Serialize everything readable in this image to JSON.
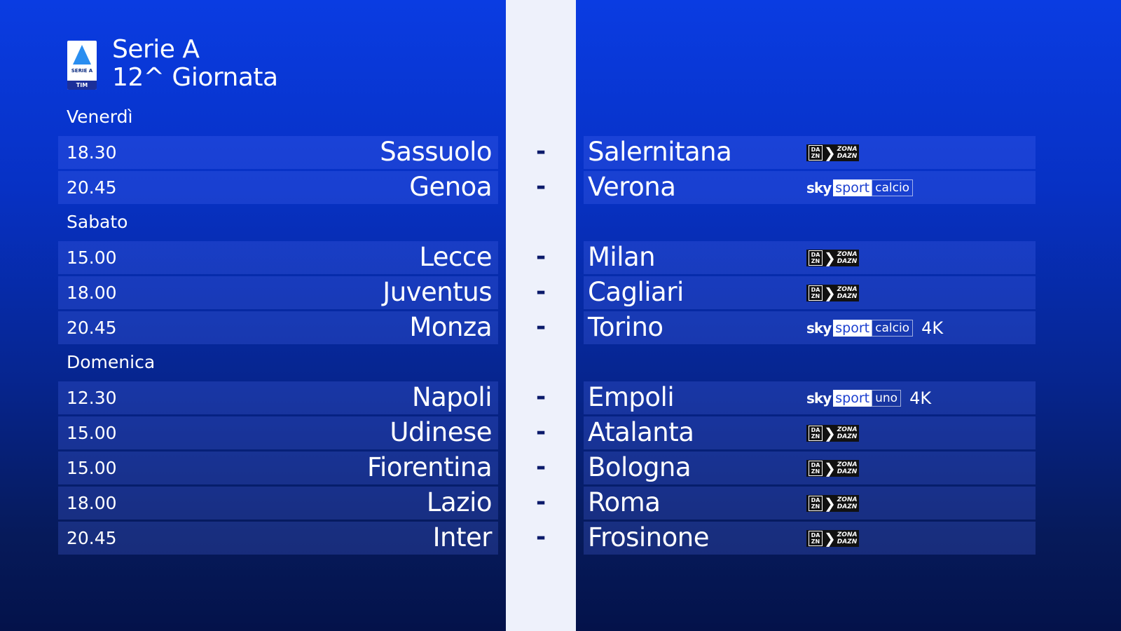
{
  "header": {
    "logo_text": "SERIE A",
    "logo_sponsor": "TIM",
    "title": "Serie A",
    "subtitle": "12^ Giornata"
  },
  "separator": "-",
  "days": [
    {
      "label": "Venerdì",
      "matches": [
        {
          "time": "18.30",
          "home": "Sassuolo",
          "away": "Salernitana",
          "broadcaster": "dazn"
        },
        {
          "time": "20.45",
          "home": "Genoa",
          "away": "Verona",
          "broadcaster": "sky",
          "channel": "calcio"
        }
      ]
    },
    {
      "label": "Sabato",
      "matches": [
        {
          "time": "15.00",
          "home": "Lecce",
          "away": "Milan",
          "broadcaster": "dazn"
        },
        {
          "time": "18.00",
          "home": "Juventus",
          "away": "Cagliari",
          "broadcaster": "dazn"
        },
        {
          "time": "20.45",
          "home": "Monza",
          "away": "Torino",
          "broadcaster": "sky",
          "channel": "calcio",
          "quality": "4K"
        }
      ]
    },
    {
      "label": "Domenica",
      "matches": [
        {
          "time": "12.30",
          "home": "Napoli",
          "away": "Empoli",
          "broadcaster": "sky",
          "channel": "uno",
          "quality": "4K"
        },
        {
          "time": "15.00",
          "home": "Udinese",
          "away": "Atalanta",
          "broadcaster": "dazn"
        },
        {
          "time": "15.00",
          "home": "Fiorentina",
          "away": "Bologna",
          "broadcaster": "dazn"
        },
        {
          "time": "18.00",
          "home": "Lazio",
          "away": "Roma",
          "broadcaster": "dazn"
        },
        {
          "time": "20.45",
          "home": "Inter",
          "away": "Frosinone",
          "broadcaster": "dazn"
        }
      ]
    }
  ],
  "logos": {
    "dazn": {
      "mark_top": "DA",
      "mark_bottom": "ZN",
      "zona_1": "ZONA",
      "zona_2": "DAZN"
    },
    "sky": {
      "brand": "sky",
      "product": "sport"
    }
  },
  "colors": {
    "background_top": "#0a3ce2",
    "background_bottom": "#04124a",
    "strip": "#eef1fb"
  }
}
